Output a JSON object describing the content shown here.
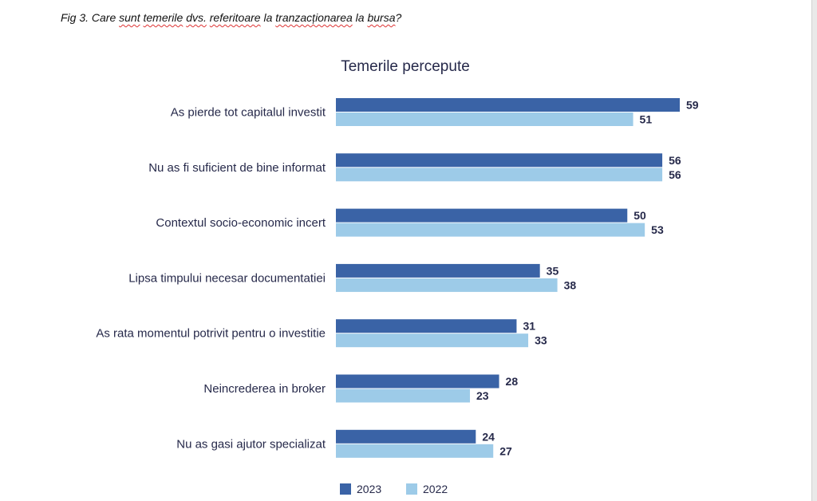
{
  "caption": {
    "prefix": "Fig 3. Care ",
    "w1": "sunt",
    "s1": " ",
    "w2": "temerile",
    "s2": " ",
    "w3": "dvs.",
    "s3": " ",
    "w4": "referitoare",
    "s4": " la ",
    "w5": "tranzacționarea",
    "s5": " la ",
    "w6": "bursa",
    "suffix": "?"
  },
  "chart_data": {
    "type": "bar",
    "orientation": "horizontal",
    "title": "Temerile percepute",
    "categories": [
      "As pierde tot capitalul investit",
      "Nu as fi suficient de bine informat",
      "Contextul socio-economic incert",
      "Lipsa timpului necesar documentatiei",
      "As rata momentul potrivit pentru o investitie",
      "Neincrederea in broker",
      "Nu as gasi ajutor specializat"
    ],
    "series": [
      {
        "name": "2023",
        "color": "#3a63a6",
        "values": [
          59,
          56,
          50,
          35,
          31,
          28,
          24
        ]
      },
      {
        "name": "2022",
        "color": "#9dcbe8",
        "values": [
          51,
          56,
          53,
          38,
          33,
          23,
          27
        ]
      }
    ],
    "xlim": [
      0,
      59
    ],
    "grid": false,
    "legend": "bottom",
    "data_labels": true
  }
}
